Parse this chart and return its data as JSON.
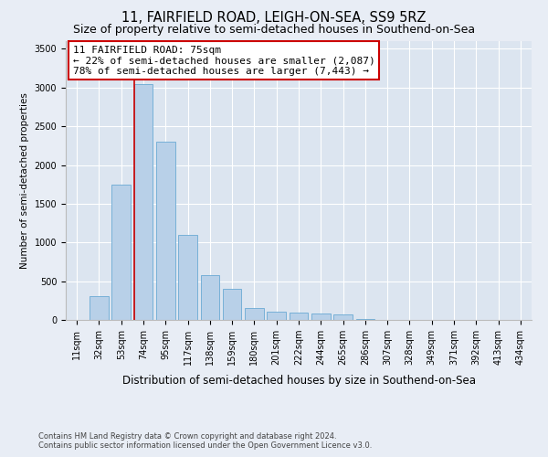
{
  "title": "11, FAIRFIELD ROAD, LEIGH-ON-SEA, SS9 5RZ",
  "subtitle": "Size of property relative to semi-detached houses in Southend-on-Sea",
  "xlabel": "Distribution of semi-detached houses by size in Southend-on-Sea",
  "ylabel": "Number of semi-detached properties",
  "footnote1": "Contains HM Land Registry data © Crown copyright and database right 2024.",
  "footnote2": "Contains public sector information licensed under the Open Government Licence v3.0.",
  "bar_labels": [
    "11sqm",
    "32sqm",
    "53sqm",
    "74sqm",
    "95sqm",
    "117sqm",
    "138sqm",
    "159sqm",
    "180sqm",
    "201sqm",
    "222sqm",
    "244sqm",
    "265sqm",
    "286sqm",
    "307sqm",
    "328sqm",
    "349sqm",
    "371sqm",
    "392sqm",
    "413sqm",
    "434sqm"
  ],
  "bar_values": [
    5,
    305,
    1750,
    3050,
    2300,
    1100,
    575,
    400,
    150,
    105,
    90,
    80,
    65,
    10,
    5,
    3,
    2,
    1,
    1,
    0,
    0
  ],
  "bar_color": "#b8d0e8",
  "bar_edge_color": "#6aaad4",
  "property_bin_index": 3,
  "annotation_line1": "11 FAIRFIELD ROAD: 75sqm",
  "annotation_line2": "← 22% of semi-detached houses are smaller (2,087)",
  "annotation_line3": "78% of semi-detached houses are larger (7,443) →",
  "annotation_box_color": "#ffffff",
  "annotation_border_color": "#cc0000",
  "vline_color": "#cc0000",
  "ylim": [
    0,
    3600
  ],
  "yticks": [
    0,
    500,
    1000,
    1500,
    2000,
    2500,
    3000,
    3500
  ],
  "background_color": "#e8edf5",
  "plot_background": "#dce5f0",
  "grid_color": "#ffffff",
  "title_fontsize": 10.5,
  "subtitle_fontsize": 9,
  "tick_fontsize": 7,
  "ylabel_fontsize": 7.5,
  "xlabel_fontsize": 8.5,
  "annotation_fontsize": 8
}
